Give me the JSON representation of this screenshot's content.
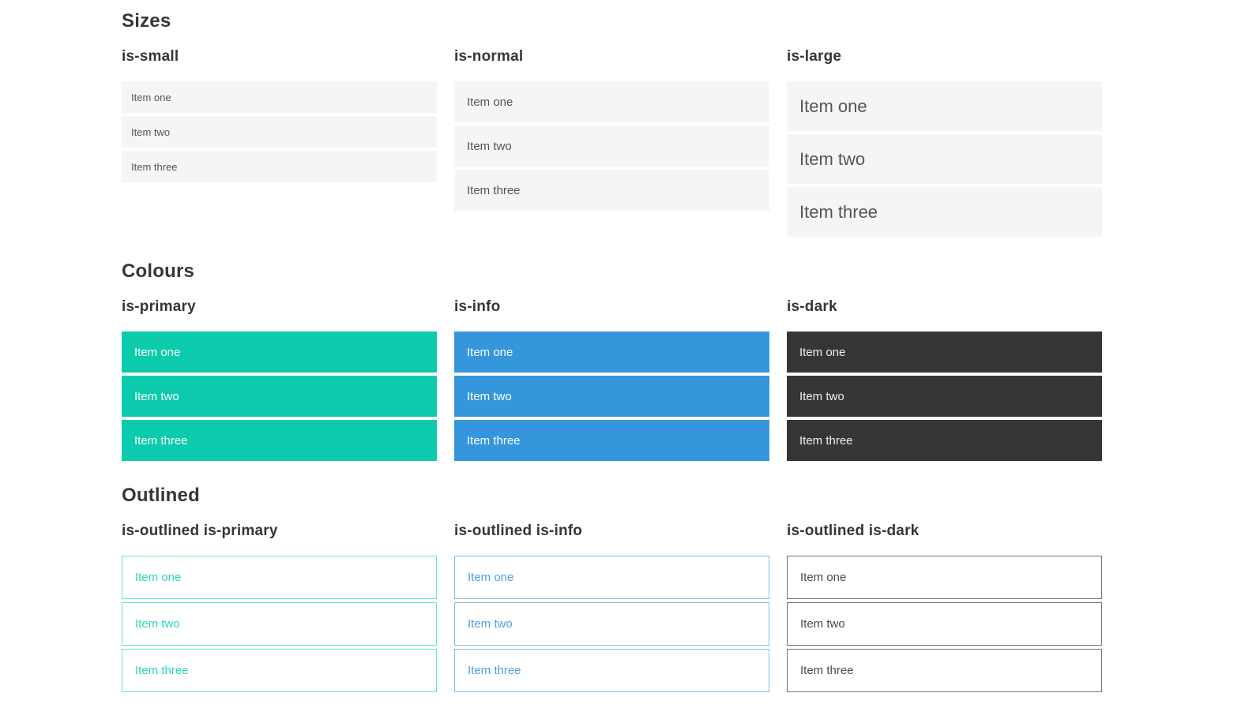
{
  "theme": {
    "primary": "#0bcbac",
    "info": "#3596dc",
    "dark": "#363636",
    "item-bg": "#f5f5f5",
    "item-text": "#545454",
    "heading-text": "#363636",
    "outlined-primary-border": "#66e2ce",
    "outlined-primary-text": "#2dd5b9",
    "outlined-info-border": "#85bce9",
    "outlined-info-text": "#4f9fe1",
    "outlined-dark-border": "#737373",
    "outlined-dark-text": "#4a4a4a"
  },
  "sections": [
    {
      "title": "Sizes",
      "groups": [
        {
          "label": "is-small",
          "items": [
            "Item one",
            "Item two",
            "Item three"
          ]
        },
        {
          "label": "is-normal",
          "items": [
            "Item one",
            "Item two",
            "Item three"
          ]
        },
        {
          "label": "is-large",
          "items": [
            "Item one",
            "Item two",
            "Item three"
          ]
        }
      ]
    },
    {
      "title": "Colours",
      "groups": [
        {
          "label": "is-primary",
          "items": [
            "Item one",
            "Item two",
            "Item three"
          ]
        },
        {
          "label": "is-info",
          "items": [
            "Item one",
            "Item two",
            "Item three"
          ]
        },
        {
          "label": "is-dark",
          "items": [
            "Item one",
            "Item two",
            "Item three"
          ]
        }
      ]
    },
    {
      "title": "Outlined",
      "groups": [
        {
          "label": "is-outlined is-primary",
          "items": [
            "Item one",
            "Item two",
            "Item three"
          ]
        },
        {
          "label": "is-outlined is-info",
          "items": [
            "Item one",
            "Item two",
            "Item three"
          ]
        },
        {
          "label": "is-outlined is-dark",
          "items": [
            "Item one",
            "Item two",
            "Item three"
          ]
        }
      ]
    }
  ]
}
